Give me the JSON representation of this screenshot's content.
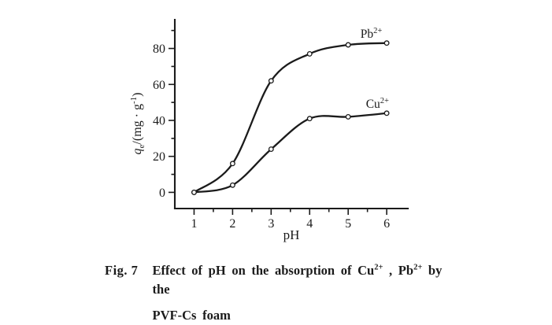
{
  "figure": {
    "background": "#ffffff",
    "ink_color": "#1b1b1b"
  },
  "chart_data": {
    "type": "line",
    "title": "",
    "xlabel": "pH",
    "ylabel": "qe/(mg · g-1)",
    "ylabel_parts": {
      "base": "q",
      "sub": "e",
      "mid": "/(mg · g",
      "sup": "-1",
      "end": ")"
    },
    "x": [
      1,
      2,
      3,
      4,
      5,
      6
    ],
    "series": [
      {
        "name": "Pb2+",
        "label_base": "Pb",
        "label_sup": "2+",
        "values": [
          0,
          16,
          62,
          77,
          82,
          83
        ],
        "label_pos": {
          "x": 5.6,
          "y": 86
        }
      },
      {
        "name": "Cu2+",
        "label_base": "Cu",
        "label_sup": "2+",
        "values": [
          0,
          4,
          24,
          41,
          42,
          44
        ],
        "label_pos": {
          "x": 5.76,
          "y": 47
        }
      }
    ],
    "xlim": [
      0.5,
      6.55
    ],
    "ylim": [
      -9,
      96
    ],
    "x_major_ticks": [
      1,
      2,
      3,
      4,
      5,
      6
    ],
    "x_minor_ticks": [
      1.5,
      2.5,
      3.5,
      4.5,
      5.5
    ],
    "y_major_ticks": [
      0,
      20,
      40,
      60,
      80
    ],
    "y_minor_ticks": [
      10,
      30,
      50,
      70,
      90
    ],
    "grid": false,
    "legend_position": "inline-labels",
    "marker": "open-circle",
    "line_color": "#1b1b1b"
  },
  "caption": {
    "label": "Fig. 7",
    "seg1": "Effect of pH on the absorption of Cu",
    "sup1": "2+",
    "seg2": " , Pb",
    "sup2": "2+",
    "seg3": " by the",
    "line2": "PVF-Cs foam"
  }
}
